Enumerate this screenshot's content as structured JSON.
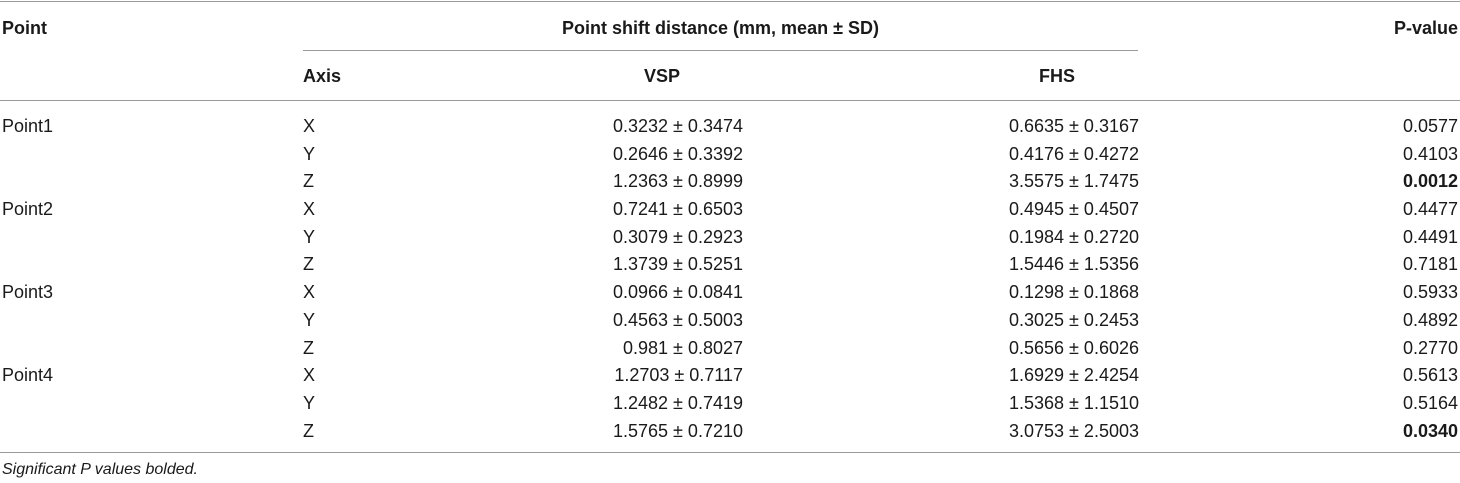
{
  "table": {
    "headers": {
      "point": "Point",
      "group": "Point shift distance (mm, mean ± SD)",
      "pvalue": "P-value",
      "axis": "Axis",
      "vsp": "VSP",
      "fhs": "FHS"
    },
    "rows": [
      {
        "point": "Point1",
        "axis": "X",
        "vsp": "0.3232 ± 0.3474",
        "fhs": "0.6635 ± 0.3167",
        "p": "0.0577",
        "significant": false
      },
      {
        "point": "",
        "axis": "Y",
        "vsp": "0.2646 ± 0.3392",
        "fhs": "0.4176 ± 0.4272",
        "p": "0.4103",
        "significant": false
      },
      {
        "point": "",
        "axis": "Z",
        "vsp": "1.2363 ± 0.8999",
        "fhs": "3.5575 ± 1.7475",
        "p": "0.0012",
        "significant": true
      },
      {
        "point": "Point2",
        "axis": "X",
        "vsp": "0.7241 ± 0.6503",
        "fhs": "0.4945 ± 0.4507",
        "p": "0.4477",
        "significant": false
      },
      {
        "point": "",
        "axis": "Y",
        "vsp": "0.3079 ± 0.2923",
        "fhs": "0.1984 ± 0.2720",
        "p": "0.4491",
        "significant": false
      },
      {
        "point": "",
        "axis": "Z",
        "vsp": "1.3739 ± 0.5251",
        "fhs": "1.5446 ± 1.5356",
        "p": "0.7181",
        "significant": false
      },
      {
        "point": "Point3",
        "axis": "X",
        "vsp": "0.0966 ± 0.0841",
        "fhs": "0.1298 ± 0.1868",
        "p": "0.5933",
        "significant": false
      },
      {
        "point": "",
        "axis": "Y",
        "vsp": "0.4563 ± 0.5003",
        "fhs": "0.3025 ± 0.2453",
        "p": "0.4892",
        "significant": false
      },
      {
        "point": "",
        "axis": "Z",
        "vsp": "0.981 ± 0.8027",
        "fhs": "0.5656 ± 0.6026",
        "p": "0.2770",
        "significant": false
      },
      {
        "point": "Point4",
        "axis": "X",
        "vsp": "1.2703 ± 0.7117",
        "fhs": "1.6929 ± 2.4254",
        "p": "0.5613",
        "significant": false
      },
      {
        "point": "",
        "axis": "Y",
        "vsp": "1.2482 ± 0.7419",
        "fhs": "1.5368 ± 1.1510",
        "p": "0.5164",
        "significant": false
      },
      {
        "point": "",
        "axis": "Z",
        "vsp": "1.5765 ± 0.7210",
        "fhs": "3.0753 ± 2.5003",
        "p": "0.0340",
        "significant": true
      }
    ],
    "footnote": "Significant P values bolded."
  }
}
